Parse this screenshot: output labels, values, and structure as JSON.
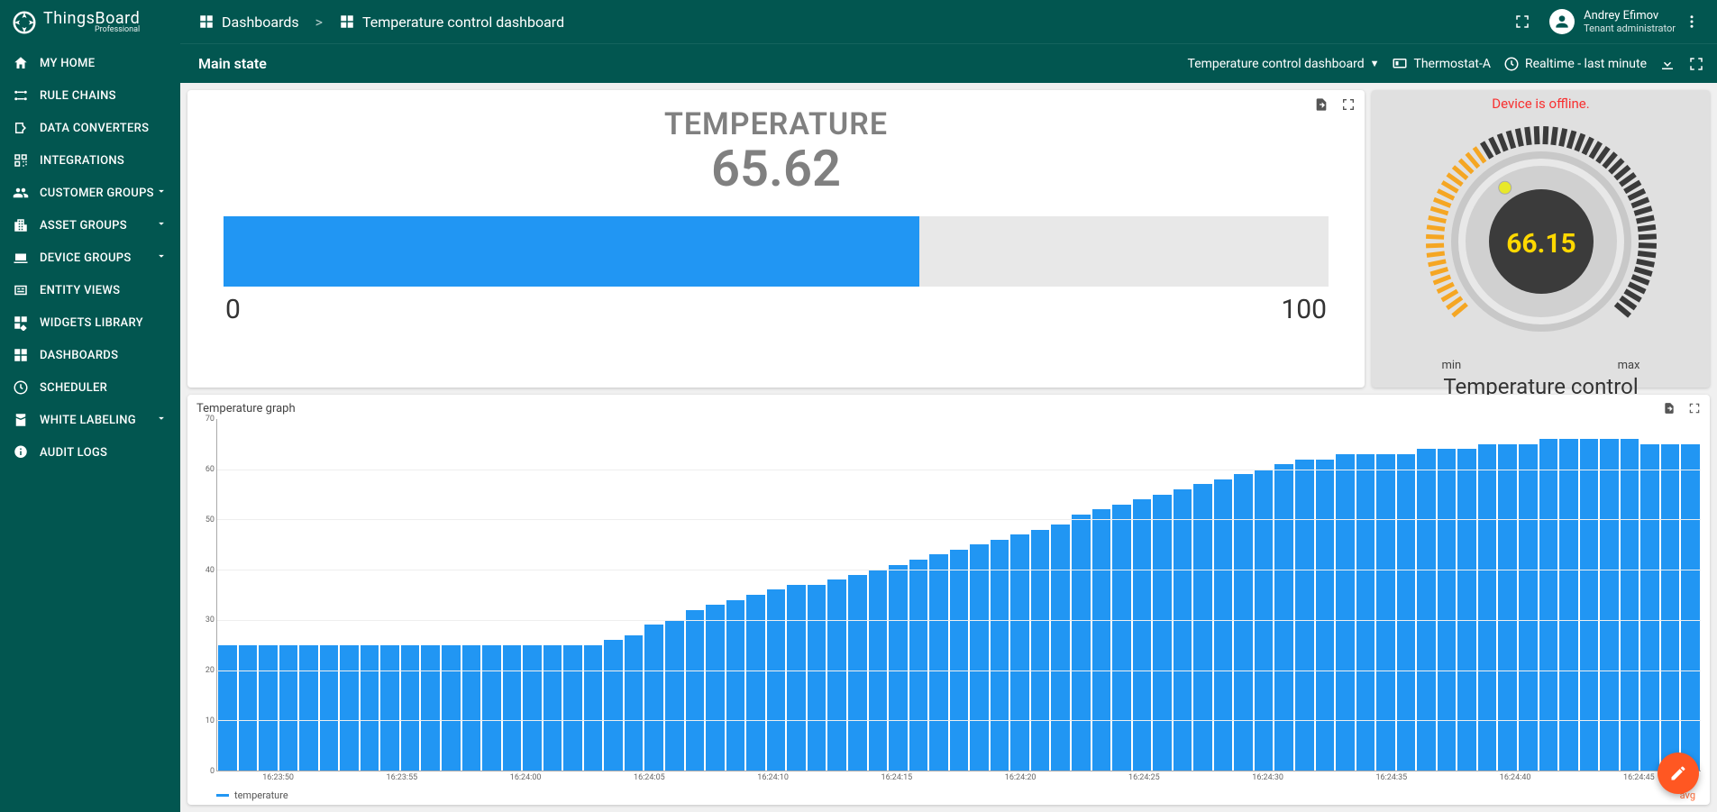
{
  "brand": {
    "name": "ThingsBoard",
    "edition": "Professional"
  },
  "sidebar": {
    "items": [
      {
        "label": "MY HOME",
        "icon": "home",
        "expandable": false
      },
      {
        "label": "RULE CHAINS",
        "icon": "rules",
        "expandable": false
      },
      {
        "label": "DATA CONVERTERS",
        "icon": "converters",
        "expandable": false
      },
      {
        "label": "INTEGRATIONS",
        "icon": "integrations",
        "expandable": false
      },
      {
        "label": "CUSTOMER GROUPS",
        "icon": "customers",
        "expandable": true
      },
      {
        "label": "ASSET GROUPS",
        "icon": "assets",
        "expandable": true
      },
      {
        "label": "DEVICE GROUPS",
        "icon": "devices",
        "expandable": true
      },
      {
        "label": "ENTITY VIEWS",
        "icon": "views",
        "expandable": false
      },
      {
        "label": "WIDGETS LIBRARY",
        "icon": "widgets",
        "expandable": false
      },
      {
        "label": "DASHBOARDS",
        "icon": "dashboards",
        "expandable": false
      },
      {
        "label": "SCHEDULER",
        "icon": "scheduler",
        "expandable": false
      },
      {
        "label": "WHITE LABELING",
        "icon": "labeling",
        "expandable": true
      },
      {
        "label": "AUDIT LOGS",
        "icon": "audit",
        "expandable": false
      }
    ]
  },
  "breadcrumb": {
    "root": "Dashboards",
    "sep": ">",
    "current": "Temperature control dashboard"
  },
  "user": {
    "name": "Andrey Efimov",
    "role": "Tenant administrator"
  },
  "subbar": {
    "state": "Main state",
    "dashboard_select": "Temperature control dashboard",
    "entity": "Thermostat-A",
    "timewindow": "Realtime - last minute"
  },
  "temp_widget": {
    "title": "TEMPERATURE",
    "value": "65.62",
    "min": "0",
    "max": "100",
    "fill_percent": 63,
    "fill_color": "#2196f3",
    "track_color": "#e8e8e8",
    "text_color": "#808080"
  },
  "knob_widget": {
    "offline_text": "Device is offline.",
    "value": "66.15",
    "min_label": "min",
    "max_label": "max",
    "title": "Temperature control",
    "value_color": "#ffd800",
    "tick_active": "#f5a623",
    "tick_inactive": "#3b3b3b",
    "knob_value_angle_deg": 236
  },
  "graph_widget": {
    "title": "Temperature graph",
    "legend_series": "temperature",
    "legend_right": "avg",
    "y": {
      "min": 0,
      "max": 70,
      "step": 10,
      "ticks": [
        0,
        10,
        20,
        30,
        40,
        50,
        60,
        70
      ]
    },
    "x_labels": [
      "16:23:50",
      "16:23:55",
      "16:24:00",
      "16:24:05",
      "16:24:10",
      "16:24:15",
      "16:24:20",
      "16:24:25",
      "16:24:30",
      "16:24:35",
      "16:24:40",
      "16:24:45"
    ],
    "bar_color": "#2196f3",
    "grid_color": "#eeeeee",
    "values": [
      25,
      25,
      25,
      25,
      25,
      25,
      25,
      25,
      25,
      25,
      25,
      25,
      25,
      25,
      25,
      25,
      25,
      25,
      25,
      26,
      27,
      29,
      30,
      32,
      33,
      34,
      35,
      36,
      37,
      37,
      38,
      39,
      40,
      41,
      42,
      43,
      44,
      45,
      46,
      47,
      48,
      49,
      51,
      52,
      53,
      54,
      55,
      56,
      57,
      58,
      59,
      60,
      61,
      62,
      62,
      63,
      63,
      63,
      63,
      64,
      64,
      64,
      65,
      65,
      65,
      66,
      66,
      66,
      66,
      66,
      65,
      65,
      65
    ]
  },
  "colors": {
    "primary": "#025650",
    "accent": "#ff5722",
    "bar": "#2196f3"
  }
}
